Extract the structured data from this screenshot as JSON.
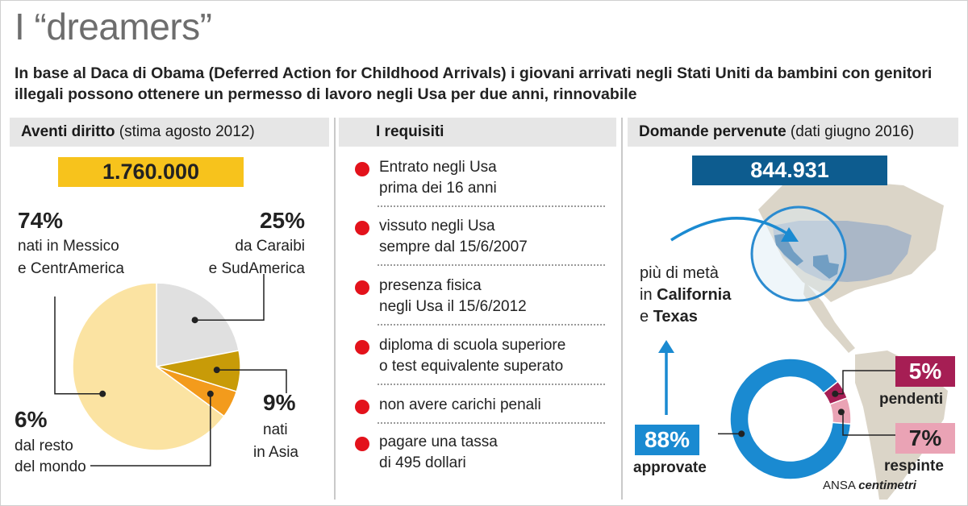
{
  "title": "I “dreamers”",
  "subtitle": "In base al Daca di Obama (Deferred Action for Childhood Arrivals) i giovani arrivati negli Stati Uniti da bambini con genitori illegali possono ottenere un permesso di lavoro negli Usa per due anni, rinnovabile",
  "col1": {
    "head_bold": "Aventi diritto",
    "head_rest": " (stima agosto 2012)",
    "total": "1.760.000",
    "total_color": "#f7c31c",
    "labels": {
      "mexico_pct": "74%",
      "mexico_line1": "nati in Messico",
      "mexico_line2": "e CentrAmerica",
      "carib_pct": "25%",
      "carib_line1": "da Caraibi",
      "carib_line2": "e SudAmerica",
      "asia_pct": "9%",
      "asia_line1": "nati",
      "asia_line2": "in Asia",
      "rest_pct": "6%",
      "rest_line1": "dal resto",
      "rest_line2": "del mondo"
    }
  },
  "col2": {
    "head_bold": "I requisiti",
    "items": [
      {
        "line1": "Entrato negli Usa",
        "line2": "prima dei 16 anni"
      },
      {
        "line1": "vissuto negli Usa",
        "line2": "sempre dal 15/6/2007"
      },
      {
        "line1": "presenza fisica",
        "line2": "negli Usa il 15/6/2012"
      },
      {
        "line1": "diploma di scuola superiore",
        "line2": "o test equivalente superato"
      },
      {
        "line1": "non avere carichi penali",
        "line2": ""
      },
      {
        "line1": "pagare una tassa",
        "line2": "di 495 dollari"
      }
    ]
  },
  "col3": {
    "head_bold": "Domande pervenute",
    "head_rest": " (dati giugno 2016)",
    "total": "844.931",
    "total_color": "#0d5c8f",
    "map_note": {
      "line1": "più di metà",
      "line2_pre": "in ",
      "line2_bold": "California",
      "line3_pre": "e ",
      "line3_bold": "Texas"
    },
    "approved_pct": "88%",
    "approved_label": "approvate",
    "pending_pct": "5%",
    "pending_label": "pendenti",
    "rejected_pct": "7%",
    "rejected_label": "respinte"
  },
  "footer": {
    "left": "ANSA",
    "right": "centimetri"
  },
  "chart_data": [
    {
      "type": "pie",
      "title": "Aventi diritto (stima agosto 2012)",
      "categories": [
        "nati in Messico e CentrAmerica",
        "da Caraibi e SudAmerica",
        "nati in Asia",
        "dal resto del mondo"
      ],
      "values": [
        74,
        25,
        9,
        6
      ],
      "colors": [
        "#fbe3a2",
        "#e0e0e0",
        "#c89b08",
        "#f39b1c"
      ]
    },
    {
      "type": "pie",
      "title": "Domande pervenute (dati giugno 2016)",
      "categories": [
        "approvate",
        "pendenti",
        "respinte"
      ],
      "values": [
        88,
        5,
        7
      ],
      "colors": [
        "#1a8ad1",
        "#a61e54",
        "#eaa3b5"
      ]
    }
  ]
}
